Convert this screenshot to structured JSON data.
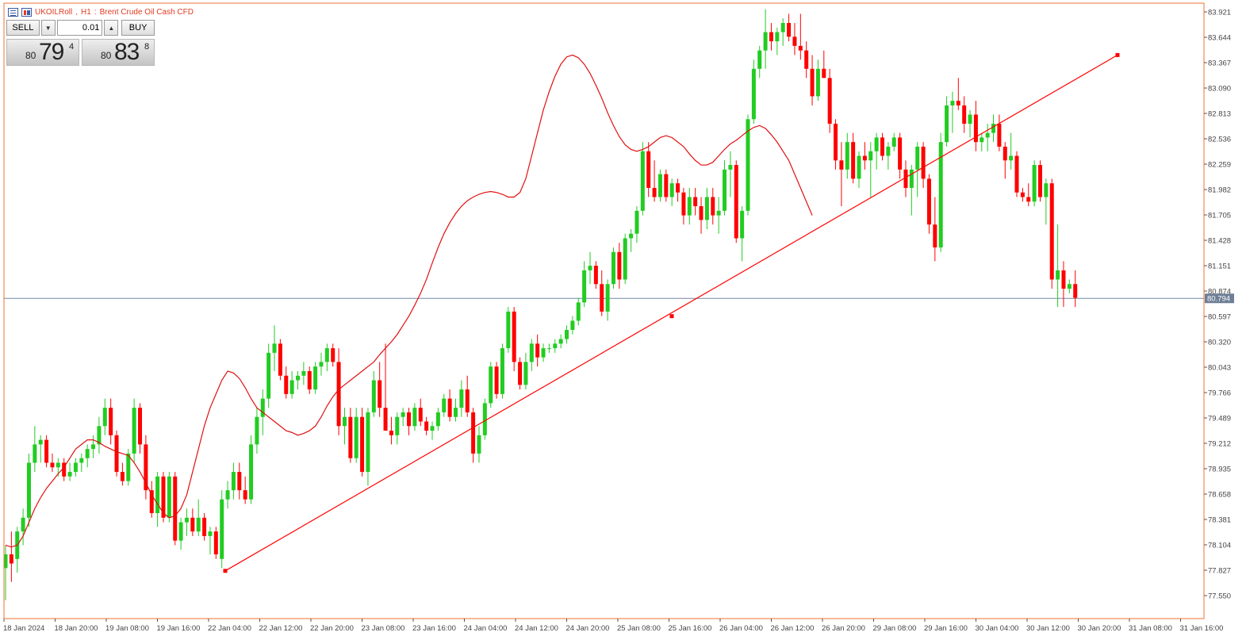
{
  "header": {
    "symbol": "UKOILRoll",
    "timeframe": "H1",
    "description": "Brent Crude Oil Cash CFD",
    "icons": [
      "symbol-list-icon",
      "chart-window-icon"
    ]
  },
  "trade_panel": {
    "sell_label": "SELL",
    "buy_label": "BUY",
    "lot_value": "0.01",
    "bid": {
      "prefix": "80",
      "big": "79",
      "sup": "4"
    },
    "ask": {
      "prefix": "80",
      "big": "83",
      "sup": "8"
    }
  },
  "current_price": "80.794",
  "colors": {
    "bull": "#22cc22",
    "bear": "#ff0000",
    "ma": "#e01010",
    "trendline": "#ff0000",
    "frame": "#f07030",
    "price_line": "#7088a8",
    "price_tag": "#6f7f96"
  },
  "chart_data": {
    "type": "candlestick",
    "y_ticks": [
      "83.921",
      "83.644",
      "83.367",
      "83.090",
      "82.813",
      "82.536",
      "82.259",
      "81.982",
      "81.705",
      "81.428",
      "81.151",
      "80.874",
      "80.597",
      "80.320",
      "80.043",
      "79.766",
      "79.489",
      "79.212",
      "78.935",
      "78.658",
      "78.381",
      "78.104",
      "77.827",
      "77.550"
    ],
    "x_ticks": [
      "18 Jan 2024",
      "18 Jan 20:00",
      "19 Jan 08:00",
      "19 Jan 16:00",
      "22 Jan 04:00",
      "22 Jan 12:00",
      "22 Jan 20:00",
      "23 Jan 08:00",
      "23 Jan 16:00",
      "24 Jan 04:00",
      "24 Jan 12:00",
      "24 Jan 20:00",
      "25 Jan 08:00",
      "25 Jan 16:00",
      "26 Jan 04:00",
      "26 Jan 12:00",
      "26 Jan 20:00",
      "29 Jan 08:00",
      "29 Jan 16:00",
      "30 Jan 04:00",
      "30 Jan 12:00",
      "30 Jan 20:00",
      "31 Jan 08:00",
      "31 Jan 16:00"
    ],
    "y_min": 77.3,
    "y_max": 83.96,
    "bars": [
      [
        77.85,
        78.1,
        77.5,
        78.0
      ],
      [
        78.0,
        78.25,
        77.7,
        77.9
      ],
      [
        77.95,
        78.3,
        77.8,
        78.25
      ],
      [
        78.25,
        78.5,
        78.1,
        78.4
      ],
      [
        78.4,
        79.1,
        78.3,
        79.0
      ],
      [
        79.0,
        79.4,
        78.9,
        79.2
      ],
      [
        79.2,
        79.3,
        79.0,
        79.25
      ],
      [
        79.25,
        79.3,
        78.95,
        79.0
      ],
      [
        79.0,
        79.1,
        78.9,
        78.95
      ],
      [
        78.95,
        79.05,
        78.85,
        79.0
      ],
      [
        79.0,
        79.05,
        78.8,
        78.85
      ],
      [
        78.85,
        79.0,
        78.8,
        78.9
      ],
      [
        78.9,
        79.05,
        78.85,
        79.0
      ],
      [
        79.0,
        79.1,
        78.9,
        79.05
      ],
      [
        79.05,
        79.2,
        78.95,
        79.15
      ],
      [
        79.15,
        79.3,
        79.05,
        79.2
      ],
      [
        79.2,
        79.5,
        79.1,
        79.4
      ],
      [
        79.4,
        79.7,
        79.3,
        79.6
      ],
      [
        79.6,
        79.7,
        79.2,
        79.3
      ],
      [
        79.3,
        79.35,
        78.85,
        78.9
      ],
      [
        78.9,
        79.0,
        78.75,
        78.8
      ],
      [
        78.8,
        79.15,
        78.75,
        79.1
      ],
      [
        79.1,
        79.7,
        79.0,
        79.6
      ],
      [
        79.6,
        79.65,
        79.1,
        79.2
      ],
      [
        79.2,
        79.3,
        78.6,
        78.7
      ],
      [
        78.7,
        78.8,
        78.4,
        78.45
      ],
      [
        78.45,
        78.9,
        78.3,
        78.85
      ],
      [
        78.85,
        78.9,
        78.35,
        78.4
      ],
      [
        78.4,
        78.9,
        78.35,
        78.85
      ],
      [
        78.85,
        78.9,
        78.1,
        78.15
      ],
      [
        78.15,
        78.4,
        78.05,
        78.35
      ],
      [
        78.35,
        78.5,
        78.2,
        78.4
      ],
      [
        78.4,
        78.5,
        78.2,
        78.25
      ],
      [
        78.25,
        78.6,
        78.2,
        78.4
      ],
      [
        78.4,
        78.45,
        78.15,
        78.2
      ],
      [
        78.2,
        78.3,
        78.0,
        78.25
      ],
      [
        78.25,
        78.3,
        77.95,
        78.0
      ],
      [
        77.95,
        78.7,
        77.85,
        78.6
      ],
      [
        78.6,
        78.8,
        78.5,
        78.7
      ],
      [
        78.7,
        79.0,
        78.6,
        78.9
      ],
      [
        78.9,
        79.0,
        78.6,
        78.7
      ],
      [
        78.7,
        78.85,
        78.55,
        78.6
      ],
      [
        78.6,
        79.3,
        78.55,
        79.2
      ],
      [
        79.2,
        79.6,
        79.1,
        79.5
      ],
      [
        79.5,
        79.8,
        79.3,
        79.7
      ],
      [
        79.7,
        80.3,
        79.6,
        80.2
      ],
      [
        80.2,
        80.5,
        80.0,
        80.3
      ],
      [
        80.3,
        80.35,
        79.9,
        79.95
      ],
      [
        79.95,
        80.05,
        79.7,
        79.75
      ],
      [
        79.75,
        80.0,
        79.7,
        79.9
      ],
      [
        79.9,
        80.0,
        79.8,
        79.95
      ],
      [
        79.95,
        80.1,
        79.85,
        80.0
      ],
      [
        80.0,
        80.05,
        79.75,
        79.8
      ],
      [
        79.8,
        80.1,
        79.75,
        80.05
      ],
      [
        80.05,
        80.2,
        79.95,
        80.1
      ],
      [
        80.1,
        80.3,
        80.0,
        80.25
      ],
      [
        80.25,
        80.3,
        80.05,
        80.1
      ],
      [
        80.1,
        80.25,
        79.3,
        79.4
      ],
      [
        79.4,
        79.6,
        79.2,
        79.5
      ],
      [
        79.5,
        79.6,
        79.0,
        79.05
      ],
      [
        79.05,
        79.6,
        79.0,
        79.5
      ],
      [
        79.5,
        79.6,
        78.85,
        78.9
      ],
      [
        78.9,
        79.6,
        78.75,
        79.55
      ],
      [
        79.55,
        80.0,
        79.5,
        79.9
      ],
      [
        79.9,
        80.1,
        79.5,
        79.6
      ],
      [
        79.6,
        80.3,
        79.5,
        79.35
      ],
      [
        79.35,
        79.5,
        79.2,
        79.3
      ],
      [
        79.3,
        79.55,
        79.2,
        79.5
      ],
      [
        79.5,
        79.6,
        79.4,
        79.55
      ],
      [
        79.55,
        79.6,
        79.3,
        79.4
      ],
      [
        79.4,
        79.65,
        79.35,
        79.6
      ],
      [
        79.6,
        79.7,
        79.4,
        79.45
      ],
      [
        79.45,
        79.5,
        79.3,
        79.35
      ],
      [
        79.35,
        79.45,
        79.25,
        79.4
      ],
      [
        79.4,
        79.6,
        79.35,
        79.55
      ],
      [
        79.55,
        79.75,
        79.5,
        79.7
      ],
      [
        79.7,
        79.8,
        79.45,
        79.5
      ],
      [
        79.5,
        79.7,
        79.45,
        79.6
      ],
      [
        79.6,
        79.9,
        79.5,
        79.8
      ],
      [
        79.8,
        79.95,
        79.5,
        79.55
      ],
      [
        79.55,
        79.6,
        79.0,
        79.1
      ],
      [
        79.1,
        79.4,
        79.0,
        79.3
      ],
      [
        79.3,
        79.7,
        79.25,
        79.65
      ],
      [
        79.65,
        80.1,
        79.6,
        80.05
      ],
      [
        80.05,
        80.1,
        79.7,
        79.75
      ],
      [
        79.75,
        80.3,
        79.7,
        80.25
      ],
      [
        80.25,
        80.7,
        80.2,
        80.65
      ],
      [
        80.65,
        80.7,
        80.0,
        80.1
      ],
      [
        80.1,
        80.15,
        79.8,
        79.85
      ],
      [
        79.85,
        80.2,
        79.8,
        80.1
      ],
      [
        80.1,
        80.35,
        80.0,
        80.3
      ],
      [
        80.3,
        80.4,
        80.05,
        80.15
      ],
      [
        80.15,
        80.3,
        80.1,
        80.25
      ],
      [
        80.25,
        80.3,
        80.2,
        80.25
      ],
      [
        80.25,
        80.35,
        80.2,
        80.3
      ],
      [
        80.3,
        80.4,
        80.25,
        80.35
      ],
      [
        80.35,
        80.5,
        80.3,
        80.45
      ],
      [
        80.45,
        80.6,
        80.4,
        80.55
      ],
      [
        80.55,
        80.8,
        80.5,
        80.75
      ],
      [
        80.75,
        81.2,
        80.7,
        81.1
      ],
      [
        81.1,
        81.3,
        80.95,
        81.15
      ],
      [
        81.15,
        81.2,
        80.9,
        80.95
      ],
      [
        80.95,
        81.1,
        80.6,
        80.65
      ],
      [
        80.65,
        81.0,
        80.55,
        80.95
      ],
      [
        80.95,
        81.35,
        80.9,
        81.3
      ],
      [
        81.3,
        81.4,
        80.9,
        81.0
      ],
      [
        81.0,
        81.5,
        80.95,
        81.45
      ],
      [
        81.45,
        81.55,
        81.3,
        81.5
      ],
      [
        81.5,
        81.8,
        81.4,
        81.75
      ],
      [
        81.75,
        82.5,
        81.7,
        82.4
      ],
      [
        82.4,
        82.5,
        81.9,
        82.0
      ],
      [
        82.0,
        82.3,
        81.85,
        81.9
      ],
      [
        81.9,
        82.2,
        81.85,
        82.15
      ],
      [
        82.15,
        82.2,
        81.85,
        81.9
      ],
      [
        81.9,
        82.1,
        81.8,
        82.05
      ],
      [
        82.05,
        82.1,
        81.85,
        81.95
      ],
      [
        81.95,
        82.0,
        81.6,
        81.7
      ],
      [
        81.7,
        82.0,
        81.6,
        81.9
      ],
      [
        81.9,
        82.0,
        81.7,
        81.8
      ],
      [
        81.8,
        81.9,
        81.5,
        81.65
      ],
      [
        81.65,
        82.0,
        81.55,
        81.9
      ],
      [
        81.9,
        82.0,
        81.6,
        81.7
      ],
      [
        81.7,
        81.9,
        81.5,
        81.75
      ],
      [
        81.75,
        82.3,
        81.7,
        82.2
      ],
      [
        82.2,
        82.4,
        81.9,
        82.25
      ],
      [
        82.25,
        82.3,
        81.4,
        81.45
      ],
      [
        81.45,
        81.8,
        81.2,
        81.75
      ],
      [
        81.75,
        82.8,
        81.7,
        82.75
      ],
      [
        82.75,
        83.4,
        82.7,
        83.3
      ],
      [
        83.3,
        83.55,
        83.2,
        83.5
      ],
      [
        83.5,
        83.95,
        83.3,
        83.7
      ],
      [
        83.7,
        83.8,
        83.5,
        83.6
      ],
      [
        83.6,
        83.75,
        83.45,
        83.7
      ],
      [
        83.7,
        83.85,
        83.55,
        83.8
      ],
      [
        83.8,
        83.9,
        83.6,
        83.65
      ],
      [
        83.65,
        83.8,
        83.45,
        83.55
      ],
      [
        83.55,
        83.9,
        83.4,
        83.5
      ],
      [
        83.5,
        83.6,
        83.2,
        83.3
      ],
      [
        83.3,
        83.45,
        82.9,
        83.0
      ],
      [
        83.0,
        83.4,
        82.95,
        83.3
      ],
      [
        83.3,
        83.5,
        83.2,
        83.2
      ],
      [
        83.2,
        83.3,
        82.6,
        82.7
      ],
      [
        82.7,
        82.75,
        82.2,
        82.3
      ],
      [
        82.3,
        82.5,
        81.8,
        82.2
      ],
      [
        82.2,
        82.6,
        82.1,
        82.5
      ],
      [
        82.5,
        82.6,
        82.05,
        82.1
      ],
      [
        82.1,
        82.4,
        82.0,
        82.35
      ],
      [
        82.35,
        82.5,
        82.2,
        82.3
      ],
      [
        82.3,
        82.5,
        81.9,
        82.4
      ],
      [
        82.4,
        82.6,
        82.2,
        82.55
      ],
      [
        82.55,
        82.6,
        82.3,
        82.35
      ],
      [
        82.35,
        82.5,
        82.2,
        82.45
      ],
      [
        82.45,
        82.6,
        82.4,
        82.55
      ],
      [
        82.55,
        82.6,
        82.1,
        82.2
      ],
      [
        82.2,
        82.3,
        81.9,
        82.0
      ],
      [
        82.0,
        82.25,
        81.7,
        82.2
      ],
      [
        82.2,
        82.5,
        81.9,
        82.45
      ],
      [
        82.45,
        82.5,
        82.0,
        82.1
      ],
      [
        82.1,
        82.15,
        81.5,
        81.6
      ],
      [
        81.6,
        81.9,
        81.2,
        81.35
      ],
      [
        81.35,
        82.6,
        81.3,
        82.5
      ],
      [
        82.5,
        83.0,
        82.45,
        82.9
      ],
      [
        82.9,
        83.05,
        82.6,
        82.95
      ],
      [
        82.95,
        83.2,
        82.85,
        82.9
      ],
      [
        82.9,
        83.0,
        82.6,
        82.7
      ],
      [
        82.7,
        82.85,
        82.55,
        82.8
      ],
      [
        82.8,
        82.95,
        82.4,
        82.5
      ],
      [
        82.5,
        82.6,
        82.4,
        82.55
      ],
      [
        82.55,
        82.7,
        82.4,
        82.6
      ],
      [
        82.6,
        82.8,
        82.5,
        82.7
      ],
      [
        82.7,
        82.8,
        82.4,
        82.45
      ],
      [
        82.45,
        82.5,
        82.1,
        82.3
      ],
      [
        82.3,
        82.6,
        82.2,
        82.35
      ],
      [
        82.35,
        82.4,
        81.9,
        81.95
      ],
      [
        81.95,
        82.0,
        81.85,
        81.9
      ],
      [
        81.9,
        82.05,
        81.8,
        81.85
      ],
      [
        81.85,
        82.3,
        81.8,
        82.25
      ],
      [
        82.25,
        82.3,
        81.85,
        81.9
      ],
      [
        81.9,
        82.1,
        81.6,
        82.05
      ],
      [
        82.05,
        82.1,
        80.9,
        81.0
      ],
      [
        81.0,
        81.6,
        80.7,
        81.1
      ],
      [
        81.1,
        81.2,
        80.7,
        80.9
      ],
      [
        80.9,
        81.0,
        80.85,
        80.95
      ],
      [
        80.95,
        81.1,
        80.7,
        80.8
      ]
    ],
    "ma": [
      78.1,
      78.08,
      78.1,
      78.2,
      78.35,
      78.5,
      78.62,
      78.72,
      78.8,
      78.88,
      78.95,
      79.05,
      79.15,
      79.2,
      79.25,
      79.25,
      79.22,
      79.18,
      79.15,
      79.12,
      79.1,
      79.08,
      79.0,
      78.9,
      78.78,
      78.65,
      78.55,
      78.45,
      78.4,
      78.42,
      78.5,
      78.65,
      78.9,
      79.15,
      79.4,
      79.6,
      79.75,
      79.9,
      80.0,
      79.98,
      79.92,
      79.82,
      79.7,
      79.6,
      79.55,
      79.5,
      79.45,
      79.4,
      79.35,
      79.33,
      79.3,
      79.32,
      79.35,
      79.4,
      79.5,
      79.62,
      79.72,
      79.8,
      79.85,
      79.9,
      79.95,
      80.0,
      80.05,
      80.1,
      80.18,
      80.25,
      80.32,
      80.4,
      80.5,
      80.6,
      80.72,
      80.85,
      81.0,
      81.18,
      81.35,
      81.5,
      81.62,
      81.72,
      81.8,
      81.86,
      81.9,
      81.93,
      81.95,
      81.96,
      81.95,
      81.93,
      81.9,
      81.9,
      81.95,
      82.1,
      82.35,
      82.6,
      82.85,
      83.05,
      83.22,
      83.35,
      83.43,
      83.45,
      83.42,
      83.35,
      83.25,
      83.12,
      82.98,
      82.82,
      82.68,
      82.56,
      82.47,
      82.42,
      82.4,
      82.42,
      82.45,
      82.5,
      82.55,
      82.57,
      82.55,
      82.5,
      82.45,
      82.37,
      82.3,
      82.25,
      82.25,
      82.28,
      82.35,
      82.42,
      82.48,
      82.52,
      82.57,
      82.62,
      82.66,
      82.68,
      82.65,
      82.58,
      82.5,
      82.4,
      82.3,
      82.15,
      82.0,
      81.85,
      81.7
    ],
    "trendline_points": [
      [
        77.82,
        "22 Jan 04:00"
      ],
      [
        80.6,
        "25 Jan 12:00"
      ],
      [
        83.45,
        "31 Jan 08:00"
      ]
    ]
  }
}
